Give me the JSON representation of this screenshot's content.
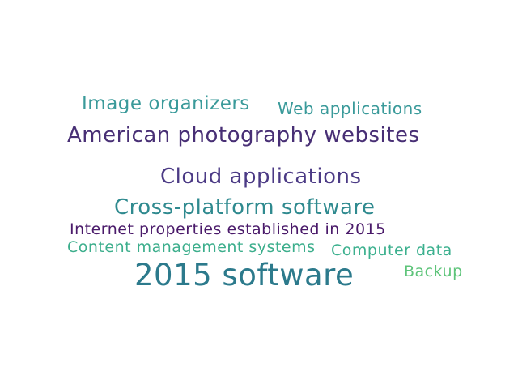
{
  "word_cloud": {
    "words": [
      {
        "text": "Image organizers",
        "color": "#3a9a9a"
      },
      {
        "text": "Web applications",
        "color": "#3a9a9a"
      },
      {
        "text": "American photography websites",
        "color": "#482f75"
      },
      {
        "text": "Cloud applications",
        "color": "#4b3a85"
      },
      {
        "text": "Cross-platform software",
        "color": "#2f8a8f"
      },
      {
        "text": "Internet properties established in 2015",
        "color": "#4a1a6a"
      },
      {
        "text": "Content management systems",
        "color": "#3cae8c"
      },
      {
        "text": "Computer data",
        "color": "#3bb08e"
      },
      {
        "text": "2015 software",
        "color": "#2c7a8c"
      },
      {
        "text": "Backup",
        "color": "#5ec47a"
      }
    ]
  }
}
